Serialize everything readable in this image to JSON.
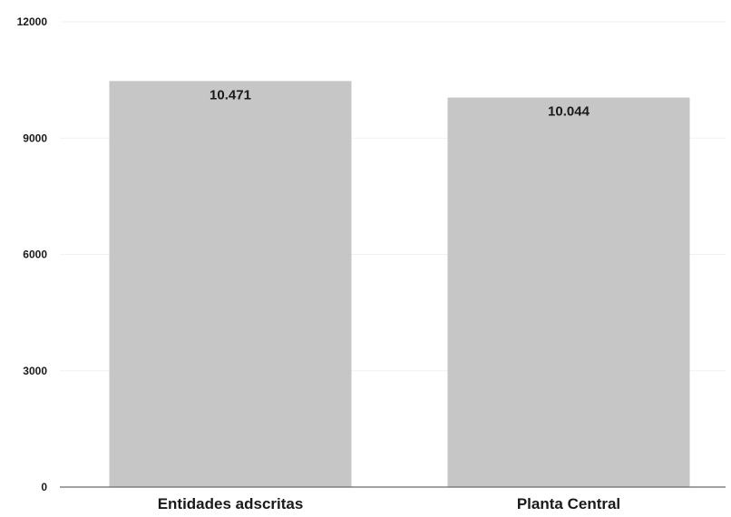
{
  "chart_data": {
    "type": "bar",
    "categories": [
      "Entidades adscritas",
      "Planta Central"
    ],
    "values": [
      10471,
      10044
    ],
    "data_labels": [
      "10.471",
      "10.044"
    ],
    "ylim": [
      0,
      12000
    ],
    "yticks": [
      0,
      3000,
      6000,
      9000,
      12000
    ],
    "ytick_labels": [
      "0",
      "3000",
      "6000",
      "9000",
      "12000"
    ],
    "grid": true,
    "legend": "none",
    "title": "",
    "xlabel": "",
    "ylabel": "",
    "colors": {
      "bar": "#c6c6c6",
      "text": "#1a1a1a",
      "axis": "#6b6b6b"
    }
  }
}
